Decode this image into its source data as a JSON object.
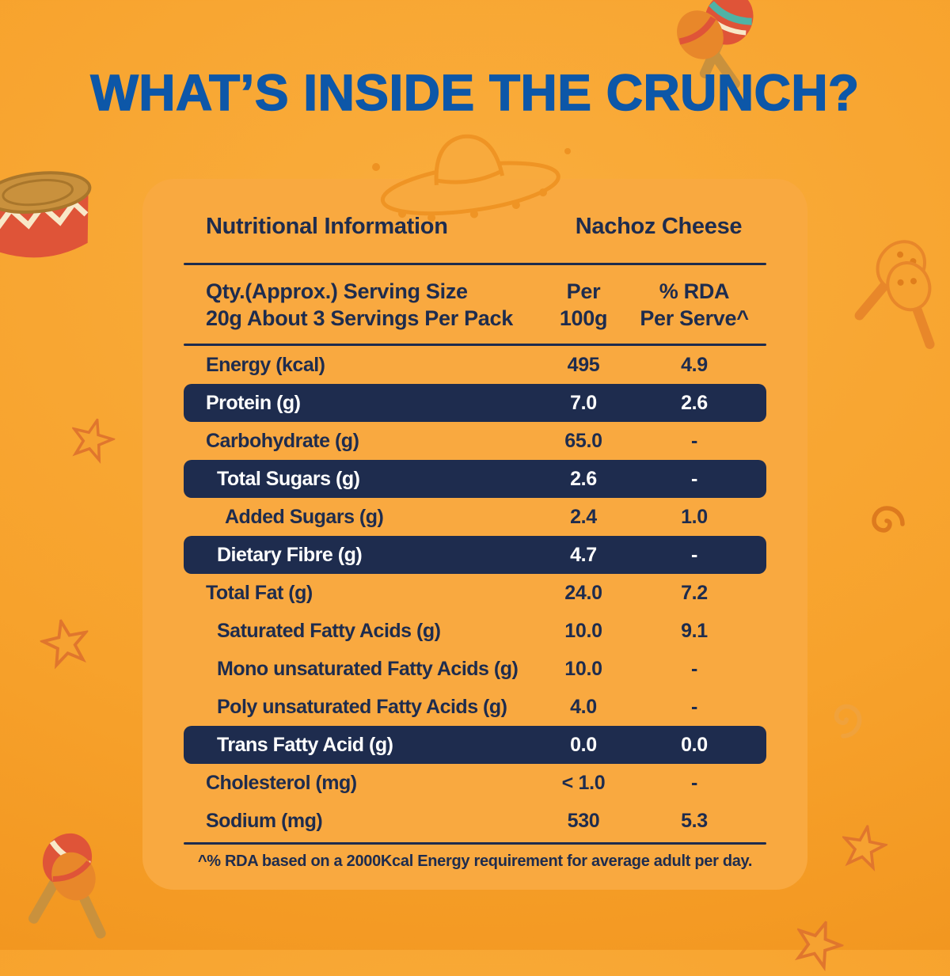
{
  "title": "WHAT’S INSIDE THE CRUNCH?",
  "panel": {
    "header": {
      "left": "Nutritional Information",
      "right": "Nachoz Cheese"
    },
    "subheader": {
      "label_line1": "Qty.(Approx.) Serving Size",
      "label_line2": "20g About 3 Servings Per Pack",
      "per_line1": "Per",
      "per_line2": "100g",
      "rda_line1": "% RDA",
      "rda_line2": "Per Serve^"
    },
    "rows": [
      {
        "label": "Energy (kcal)",
        "per100g": "495",
        "rda": "4.9",
        "highlight": false,
        "indent": 0
      },
      {
        "label": "Protein (g)",
        "per100g": "7.0",
        "rda": "2.6",
        "highlight": true,
        "indent": 0
      },
      {
        "label": "Carbohydrate (g)",
        "per100g": "65.0",
        "rda": "-",
        "highlight": false,
        "indent": 0
      },
      {
        "label": "Total Sugars (g)",
        "per100g": "2.6",
        "rda": "-",
        "highlight": true,
        "indent": 1
      },
      {
        "label": "Added Sugars (g)",
        "per100g": "2.4",
        "rda": "1.0",
        "highlight": false,
        "indent": 2
      },
      {
        "label": "Dietary Fibre (g)",
        "per100g": "4.7",
        "rda": "-",
        "highlight": true,
        "indent": 1
      },
      {
        "label": "Total Fat (g)",
        "per100g": "24.0",
        "rda": "7.2",
        "highlight": false,
        "indent": 0
      },
      {
        "label": "Saturated Fatty Acids (g)",
        "per100g": "10.0",
        "rda": "9.1",
        "highlight": false,
        "indent": 1
      },
      {
        "label": "Mono unsaturated Fatty Acids (g)",
        "per100g": "10.0",
        "rda": "-",
        "highlight": false,
        "indent": 1
      },
      {
        "label": "Poly unsaturated Fatty Acids (g)",
        "per100g": "4.0",
        "rda": "-",
        "highlight": false,
        "indent": 1
      },
      {
        "label": "Trans Fatty Acid (g)",
        "per100g": "0.0",
        "rda": "0.0",
        "highlight": true,
        "indent": 1
      },
      {
        "label": "Cholesterol (mg)",
        "per100g": "< 1.0",
        "rda": "-",
        "highlight": false,
        "indent": 0
      },
      {
        "label": "Sodium (mg)",
        "per100g": "530",
        "rda": "5.3",
        "highlight": false,
        "indent": 0
      }
    ],
    "footnote": "^% RDA based on a 2000Kcal Energy requirement for average adult per day."
  },
  "palette": {
    "background_top": "#FAAE3E",
    "background_bottom": "#EF8F18",
    "panel_orange": "#F9A940",
    "navy": "#1E2C4E",
    "title_blue": "#0D57A8",
    "highlight_text": "#FFFFFF",
    "decor_orange": "#E8872A",
    "decor_red": "#DF5438",
    "decor_teal": "#4FB3A5",
    "decor_tan": "#C9913D"
  },
  "decorations": [
    "sombrero-icon",
    "maracas-icon",
    "drum-icon",
    "star-icon",
    "swirl-icon",
    "dot-icon"
  ]
}
